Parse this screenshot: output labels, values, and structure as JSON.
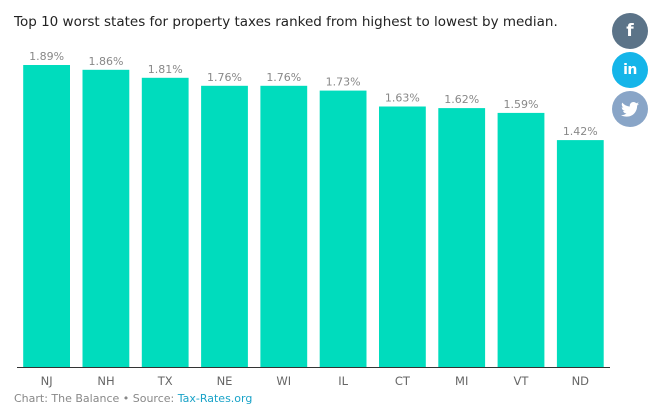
{
  "title": "Top 10 worst states for property taxes ranked from highest to lowest by median.",
  "footer": {
    "credit": "Chart: The Balance • Source: ",
    "source_link": "Tax-Rates.org"
  },
  "share": {
    "facebook": {
      "icon": "facebook-icon",
      "glyph": "f",
      "color": "#5b7388"
    },
    "linkedin": {
      "icon": "linkedin-icon",
      "glyph": "in",
      "color": "#15b5e9"
    },
    "twitter": {
      "icon": "twitter-icon",
      "color": "#89a5c7"
    }
  },
  "colors": {
    "bar": "#00dcbd",
    "baseline": "#333333"
  },
  "chart_data": {
    "type": "bar",
    "title": "Top 10 worst states for property taxes ranked from highest to lowest by median.",
    "categories": [
      "NJ",
      "NH",
      "TX",
      "NE",
      "WI",
      "IL",
      "CT",
      "MI",
      "VT",
      "ND"
    ],
    "values": [
      1.89,
      1.86,
      1.81,
      1.76,
      1.76,
      1.73,
      1.63,
      1.62,
      1.59,
      1.42
    ],
    "value_labels": [
      "1.89%",
      "1.86%",
      "1.81%",
      "1.76%",
      "1.76%",
      "1.73%",
      "1.63%",
      "1.62%",
      "1.59%",
      "1.42%"
    ],
    "xlabel": "",
    "ylabel": "",
    "ylim": [
      0,
      1.89
    ],
    "grid": false,
    "legend": "none"
  }
}
